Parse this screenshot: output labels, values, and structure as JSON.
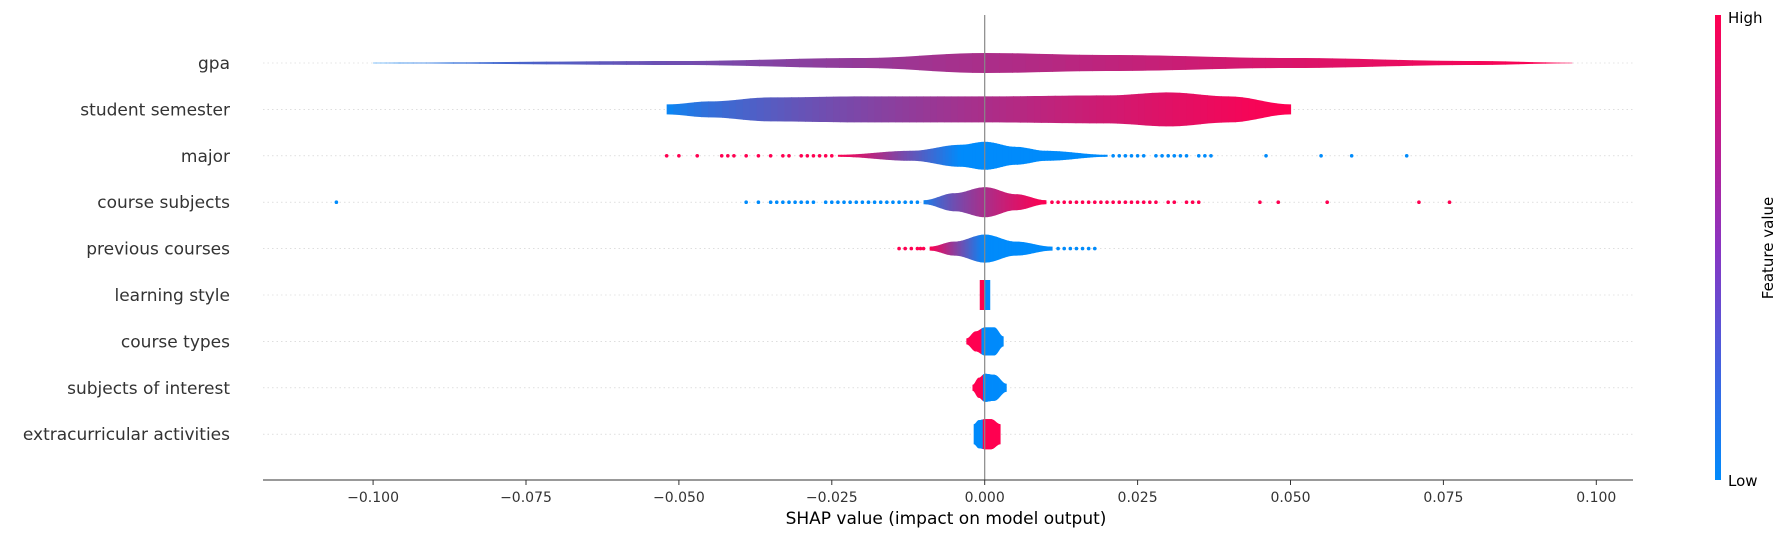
{
  "chart_data": {
    "type": "violin",
    "title": "",
    "xlabel": "SHAP value (impact on model output)",
    "xlim": [
      -0.118,
      0.106
    ],
    "xticks": [
      -0.1,
      -0.075,
      -0.05,
      -0.025,
      0.0,
      0.025,
      0.05,
      0.075,
      0.1
    ],
    "xtick_labels": [
      "−0.100",
      "−0.075",
      "−0.050",
      "−0.025",
      "0.000",
      "0.025",
      "0.050",
      "0.075",
      "0.100"
    ],
    "grid": false,
    "zero_line": true,
    "colorbar": {
      "label": "Feature value",
      "high_label": "High",
      "low_label": "Low",
      "low_color": "#008bfb",
      "high_color": "#ff0051"
    },
    "features": [
      {
        "name": "gpa",
        "min": -0.1,
        "max": 0.096,
        "density": [
          [
            -0.1,
            0.3
          ],
          [
            -0.05,
            2
          ],
          [
            -0.02,
            5
          ],
          [
            0.0,
            10
          ],
          [
            0.02,
            8
          ],
          [
            0.05,
            5
          ],
          [
            0.08,
            2
          ],
          [
            0.096,
            0.3
          ]
        ],
        "color_low_to_high": true,
        "outliers_low": [],
        "outliers_high": []
      },
      {
        "name": "student semester",
        "min": -0.052,
        "max": 0.05,
        "density": [
          [
            -0.052,
            5
          ],
          [
            -0.045,
            8
          ],
          [
            -0.035,
            12
          ],
          [
            -0.02,
            13
          ],
          [
            0.0,
            13
          ],
          [
            0.02,
            14
          ],
          [
            0.03,
            17
          ],
          [
            0.04,
            13
          ],
          [
            0.05,
            5
          ]
        ],
        "color_low_to_high": true,
        "outliers_low": [],
        "outliers_high": []
      },
      {
        "name": "major",
        "min": -0.024,
        "max": 0.02,
        "density": [
          [
            -0.024,
            1
          ],
          [
            -0.012,
            5
          ],
          [
            -0.004,
            11
          ],
          [
            0.0,
            14
          ],
          [
            0.005,
            9
          ],
          [
            0.01,
            5
          ],
          [
            0.02,
            1
          ]
        ],
        "color_low_to_high": false,
        "outliers_low": [
          -0.052,
          -0.05,
          -0.047,
          -0.043,
          -0.042,
          -0.041,
          -0.039,
          -0.037,
          -0.035,
          -0.033,
          -0.032,
          -0.03,
          -0.029,
          -0.028,
          -0.027,
          -0.026,
          -0.025
        ],
        "outliers_high": [
          0.021,
          0.022,
          0.023,
          0.024,
          0.025,
          0.026,
          0.028,
          0.029,
          0.03,
          0.031,
          0.032,
          0.033,
          0.035,
          0.036,
          0.037,
          0.046,
          0.055,
          0.06,
          0.069
        ]
      },
      {
        "name": "course subjects",
        "min": -0.01,
        "max": 0.01,
        "density": [
          [
            -0.01,
            2
          ],
          [
            -0.005,
            9
          ],
          [
            0.0,
            15
          ],
          [
            0.005,
            8
          ],
          [
            0.01,
            2
          ]
        ],
        "color_low_to_high": true,
        "outliers_low": [
          -0.106,
          -0.039,
          -0.037,
          -0.035,
          -0.034,
          -0.033,
          -0.032,
          -0.031,
          -0.03,
          -0.029,
          -0.028,
          -0.026,
          -0.025,
          -0.024,
          -0.023,
          -0.022,
          -0.021,
          -0.02,
          -0.019,
          -0.018,
          -0.017,
          -0.016,
          -0.015,
          -0.014,
          -0.013,
          -0.012,
          -0.011
        ],
        "outliers_high": [
          0.011,
          0.012,
          0.013,
          0.014,
          0.015,
          0.016,
          0.017,
          0.018,
          0.019,
          0.02,
          0.021,
          0.022,
          0.023,
          0.024,
          0.025,
          0.026,
          0.027,
          0.028,
          0.03,
          0.031,
          0.033,
          0.034,
          0.035,
          0.045,
          0.048,
          0.056,
          0.071,
          0.076
        ]
      },
      {
        "name": "previous courses",
        "min": -0.009,
        "max": 0.011,
        "density": [
          [
            -0.009,
            2
          ],
          [
            -0.005,
            7
          ],
          [
            0.0,
            14
          ],
          [
            0.005,
            7
          ],
          [
            0.011,
            2
          ]
        ],
        "color_low_to_high": false,
        "outliers_low": [
          -0.014,
          -0.013,
          -0.012,
          -0.011,
          -0.0105,
          -0.01
        ],
        "outliers_high": [
          0.012,
          0.013,
          0.014,
          0.015,
          0.016,
          0.017,
          0.018
        ]
      },
      {
        "name": "learning style",
        "min": -0.0008,
        "max": 0.0008,
        "density": [
          [
            -0.0008,
            15
          ],
          [
            0.0,
            15
          ],
          [
            0.0008,
            15
          ]
        ],
        "color_low_to_high": false,
        "split_at": -0.0001,
        "outliers_low": [],
        "outliers_high": []
      },
      {
        "name": "course types",
        "min": -0.003,
        "max": 0.003,
        "density": [
          [
            -0.003,
            3
          ],
          [
            -0.0015,
            10
          ],
          [
            0.0,
            14
          ],
          [
            0.0015,
            14
          ],
          [
            0.003,
            5
          ]
        ],
        "color_low_to_high": false,
        "split_at": -0.0005,
        "outliers_low": [],
        "outliers_high": []
      },
      {
        "name": "subjects of interest",
        "min": -0.002,
        "max": 0.0035,
        "density": [
          [
            -0.002,
            3
          ],
          [
            -0.001,
            10
          ],
          [
            0.0,
            14
          ],
          [
            0.0015,
            13
          ],
          [
            0.0035,
            4
          ]
        ],
        "color_low_to_high": false,
        "split_at": -0.0003,
        "outliers_low": [],
        "outliers_high": []
      },
      {
        "name": "extracurricular activities",
        "min": -0.0018,
        "max": 0.0025,
        "density": [
          [
            -0.0018,
            10
          ],
          [
            -0.001,
            14
          ],
          [
            0.0,
            15
          ],
          [
            0.001,
            15
          ],
          [
            0.0025,
            10
          ]
        ],
        "color_low_to_high": true,
        "split_at": -0.0003,
        "outliers_low": [],
        "outliers_high": []
      }
    ]
  }
}
